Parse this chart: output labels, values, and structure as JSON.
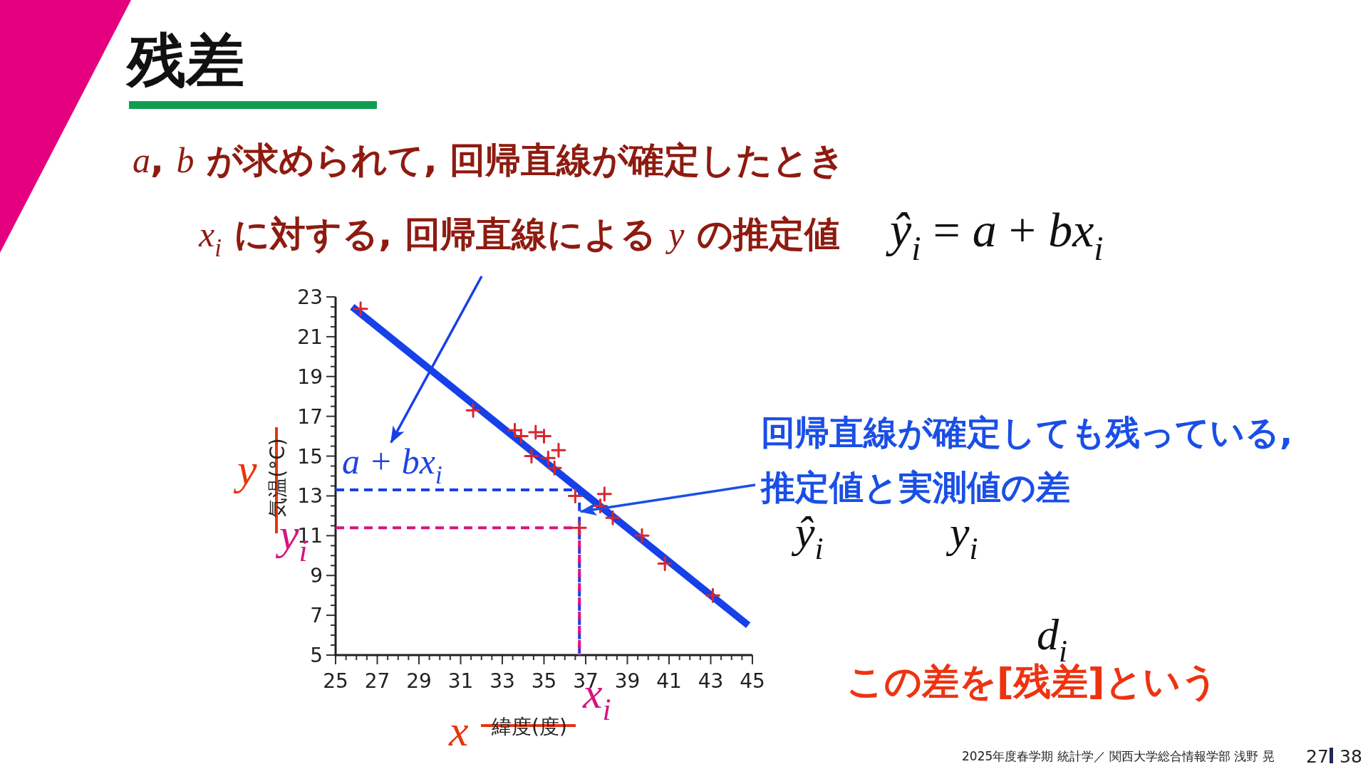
{
  "chart_data": {
    "type": "scatter",
    "title": "残差",
    "xlabel": "緯度(度)",
    "ylabel": "気温(°C)",
    "xlim": [
      25,
      45
    ],
    "ylim": [
      5,
      23
    ],
    "xticks": [
      25,
      {
        "value": 25.5,
        "label": null
      },
      {
        "value": 26,
        "label": null
      },
      {
        "value": 26.5,
        "label": null
      },
      27,
      {
        "value": 27.5,
        "label": null
      },
      {
        "value": 28,
        "label": null
      },
      {
        "value": 28.5,
        "label": null
      },
      29,
      {
        "value": 29.5,
        "label": null
      },
      {
        "value": 30,
        "label": null
      },
      {
        "value": 30.5,
        "label": null
      },
      31,
      {
        "value": 31.5,
        "label": null
      },
      {
        "value": 32,
        "label": null
      },
      {
        "value": 32.5,
        "label": null
      },
      33,
      {
        "value": 33.5,
        "label": null
      },
      {
        "value": 34,
        "label": null
      },
      {
        "value": 34.5,
        "label": null
      },
      35,
      {
        "value": 35.5,
        "label": null
      },
      {
        "value": 36,
        "label": null
      },
      {
        "value": 36.5,
        "label": null
      },
      37,
      {
        "value": 37.5,
        "label": null
      },
      {
        "value": 38,
        "label": null
      },
      {
        "value": 38.5,
        "label": null
      },
      39,
      {
        "value": 39.5,
        "label": null
      },
      {
        "value": 40,
        "label": null
      },
      {
        "value": 40.5,
        "label": null
      },
      41,
      {
        "value": 41.5,
        "label": null
      },
      {
        "value": 42,
        "label": null
      },
      {
        "value": 42.5,
        "label": null
      },
      43,
      {
        "value": 43.5,
        "label": null
      },
      {
        "value": 44,
        "label": null
      },
      {
        "value": 44.5,
        "label": null
      },
      45
    ],
    "yticks": [
      5,
      {
        "value": 5.5,
        "label": null
      },
      {
        "value": 6,
        "label": null
      },
      {
        "value": 6.5,
        "label": null
      },
      7,
      {
        "value": 7.5,
        "label": null
      },
      {
        "value": 8,
        "label": null
      },
      {
        "value": 8.5,
        "label": null
      },
      9,
      {
        "value": 9.5,
        "label": null
      },
      {
        "value": 10,
        "label": null
      },
      {
        "value": 10.5,
        "label": null
      },
      11,
      {
        "value": 11.5,
        "label": null
      },
      {
        "value": 12,
        "label": null
      },
      {
        "value": 12.5,
        "label": null
      },
      13,
      {
        "value": 13.5,
        "label": null
      },
      {
        "value": 14,
        "label": null
      },
      {
        "value": 14.5,
        "label": null
      },
      15,
      {
        "value": 15.5,
        "label": null
      },
      {
        "value": 16,
        "label": null
      },
      {
        "value": 16.5,
        "label": null
      },
      17,
      {
        "value": 17.5,
        "label": null
      },
      {
        "value": 18,
        "label": null
      },
      {
        "value": 18.5,
        "label": null
      },
      19,
      {
        "value": 19.5,
        "label": null
      },
      {
        "value": 20,
        "label": null
      },
      {
        "value": 20.5,
        "label": null
      },
      21,
      {
        "value": 21.5,
        "label": null
      },
      {
        "value": 22,
        "label": null
      },
      {
        "value": 22.5,
        "label": null
      },
      23
    ],
    "grid": false,
    "series": [
      {
        "type": "line",
        "color": "#1a3fe6",
        "line_style": "dashed",
        "marker": "none",
        "x": [
          25,
          36.7,
          36.7
        ],
        "values": [
          13.3,
          13.3,
          5
        ]
      },
      {
        "type": "line",
        "color": "#d6157f",
        "line_style": "dashed",
        "marker": "none",
        "x": [
          25,
          36.7,
          36.7
        ],
        "values": [
          11.4,
          11.4,
          5
        ]
      },
      {
        "type": "line",
        "color": "#1640e8",
        "line_style": "solid",
        "marker": "none",
        "x": [
          25.8,
          44.8
        ],
        "values": [
          22.5,
          6.5
        ]
      },
      {
        "color": "#d8262e",
        "marker": "cross",
        "x": [
          26.2,
          31.6,
          33.6,
          33.9,
          34.6,
          35.0,
          35.7,
          34.4,
          35.2,
          35.5,
          36.5,
          37.9,
          37.7,
          38.3,
          39.7,
          40.8,
          43.1,
          36.7
        ],
        "values": [
          22.4,
          17.3,
          16.3,
          16.0,
          16.2,
          16.0,
          15.3,
          15.0,
          14.9,
          14.4,
          13.0,
          13.1,
          12.5,
          11.9,
          11.0,
          9.6,
          8.0,
          11.4
        ]
      }
    ],
    "annotations": [
      "*a*, *b* が求められて, 回帰直線が確定したとき",
      "*x*$_{i}$ に対する, 回帰直線による *y* の推定値",
      "*ŷ*$_{i}$ = *a* + *bx*$_{i}$",
      "a + bx$_{i}$",
      "回帰直線が確定しても残っている,",
      {
        "text": "推定値と実測値の差",
        "x": 36.7,
        "y": 12.2
      },
      "ŷ$_{i}$",
      "y$_{i}$",
      "d$_{i}$",
      "この差を[残差]という",
      "y",
      "y$_{i}$",
      "x",
      "x$_{i}$",
      "2025年度春学期 統計学／ 関西大学総合情報学部 浅野 晃",
      "27",
      "38"
    ]
  }
}
